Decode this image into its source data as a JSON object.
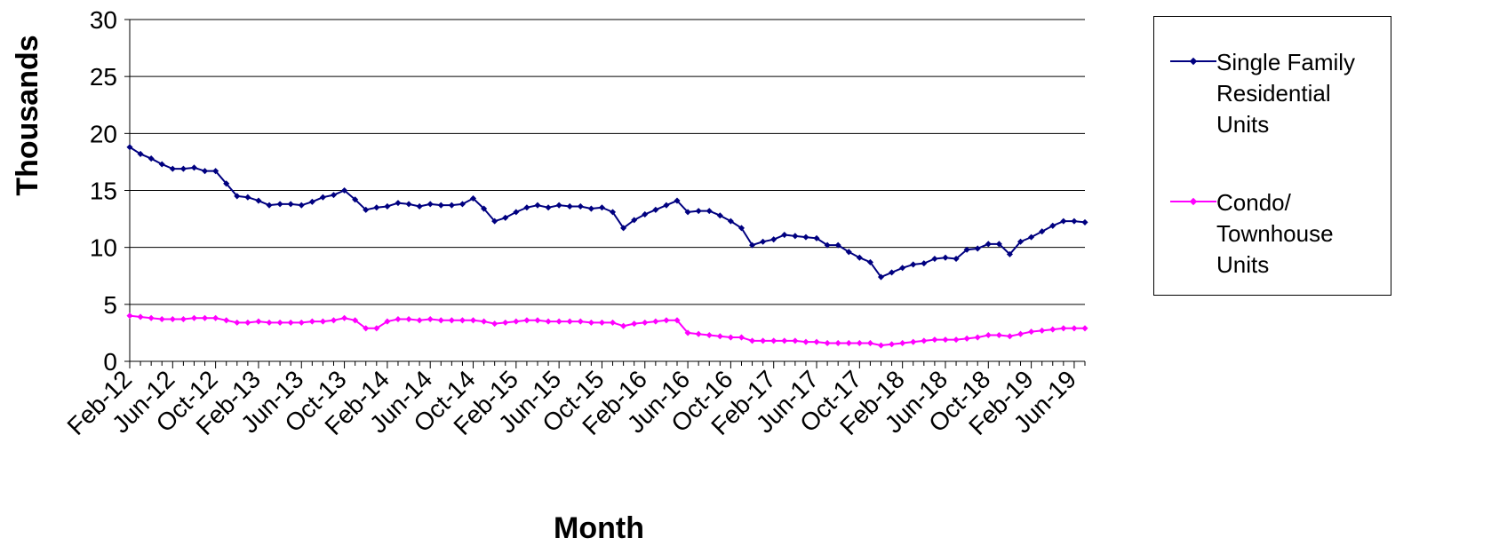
{
  "chart_data": {
    "type": "line",
    "title": "",
    "xlabel": "Month",
    "ylabel": "Thousands",
    "ylim": [
      0,
      30
    ],
    "yticks": [
      0,
      5,
      10,
      15,
      20,
      25,
      30
    ],
    "grid": "horizontal",
    "legend_position": "right",
    "x_tick_labels": [
      "Feb-12",
      "Jun-12",
      "Oct-12",
      "Feb-13",
      "Jun-13",
      "Oct-13",
      "Feb-14",
      "Jun-14",
      "Oct-14",
      "Feb-15",
      "Jun-15",
      "Oct-15",
      "Feb-16",
      "Jun-16",
      "Oct-16",
      "Feb-17",
      "Jun-17",
      "Oct-17",
      "Feb-18",
      "Jun-18",
      "Oct-18",
      "Feb-19",
      "Jun-19"
    ],
    "x": [
      "Feb-12",
      "Mar-12",
      "Apr-12",
      "May-12",
      "Jun-12",
      "Jul-12",
      "Aug-12",
      "Sep-12",
      "Oct-12",
      "Nov-12",
      "Dec-12",
      "Jan-13",
      "Feb-13",
      "Mar-13",
      "Apr-13",
      "May-13",
      "Jun-13",
      "Jul-13",
      "Aug-13",
      "Sep-13",
      "Oct-13",
      "Nov-13",
      "Dec-13",
      "Jan-14",
      "Feb-14",
      "Mar-14",
      "Apr-14",
      "May-14",
      "Jun-14",
      "Jul-14",
      "Aug-14",
      "Sep-14",
      "Oct-14",
      "Nov-14",
      "Dec-14",
      "Jan-15",
      "Feb-15",
      "Mar-15",
      "Apr-15",
      "May-15",
      "Jun-15",
      "Jul-15",
      "Aug-15",
      "Sep-15",
      "Oct-15",
      "Nov-15",
      "Dec-15",
      "Jan-16",
      "Feb-16",
      "Mar-16",
      "Apr-16",
      "May-16",
      "Jun-16",
      "Jul-16",
      "Aug-16",
      "Sep-16",
      "Oct-16",
      "Nov-16",
      "Dec-16",
      "Jan-17",
      "Feb-17",
      "Mar-17",
      "Apr-17",
      "May-17",
      "Jun-17",
      "Jul-17",
      "Aug-17",
      "Sep-17",
      "Oct-17",
      "Nov-17",
      "Dec-17",
      "Jan-18",
      "Feb-18",
      "Mar-18",
      "Apr-18",
      "May-18",
      "Jun-18",
      "Jul-18",
      "Aug-18",
      "Sep-18",
      "Oct-18",
      "Nov-18",
      "Dec-18",
      "Jan-19",
      "Feb-19",
      "Mar-19",
      "Apr-19",
      "May-19",
      "Jun-19",
      "Jul-19"
    ],
    "series": [
      {
        "name": "Single Family Residential Units",
        "color": "#000080",
        "values": [
          18.8,
          18.2,
          17.8,
          17.3,
          16.9,
          16.9,
          17.0,
          16.7,
          16.7,
          15.6,
          14.5,
          14.4,
          14.1,
          13.7,
          13.8,
          13.8,
          13.7,
          14.0,
          14.4,
          14.6,
          15.0,
          14.2,
          13.3,
          13.5,
          13.6,
          13.9,
          13.8,
          13.6,
          13.8,
          13.7,
          13.7,
          13.8,
          14.3,
          13.4,
          12.3,
          12.6,
          13.1,
          13.5,
          13.7,
          13.5,
          13.7,
          13.6,
          13.6,
          13.4,
          13.5,
          13.1,
          11.7,
          12.4,
          12.9,
          13.3,
          13.7,
          14.1,
          13.1,
          13.2,
          13.2,
          12.8,
          12.3,
          11.7,
          10.2,
          10.5,
          10.7,
          11.1,
          11.0,
          10.9,
          10.8,
          10.2,
          10.2,
          9.6,
          9.1,
          8.7,
          7.4,
          7.8,
          8.2,
          8.5,
          8.6,
          9.0,
          9.1,
          9.0,
          9.8,
          9.9,
          10.3,
          10.3,
          9.4,
          10.5,
          10.9,
          11.4,
          11.9,
          12.3,
          12.3,
          12.2
        ]
      },
      {
        "name": "Condo/ Townhouse Units",
        "color": "#ff00ff",
        "values": [
          4.0,
          3.9,
          3.8,
          3.7,
          3.7,
          3.7,
          3.8,
          3.8,
          3.8,
          3.6,
          3.4,
          3.4,
          3.5,
          3.4,
          3.4,
          3.4,
          3.4,
          3.5,
          3.5,
          3.6,
          3.8,
          3.6,
          2.9,
          2.9,
          3.5,
          3.7,
          3.7,
          3.6,
          3.7,
          3.6,
          3.6,
          3.6,
          3.6,
          3.5,
          3.3,
          3.4,
          3.5,
          3.6,
          3.6,
          3.5,
          3.5,
          3.5,
          3.5,
          3.4,
          3.4,
          3.4,
          3.1,
          3.3,
          3.4,
          3.5,
          3.6,
          3.6,
          2.5,
          2.4,
          2.3,
          2.2,
          2.1,
          2.1,
          1.8,
          1.8,
          1.8,
          1.8,
          1.8,
          1.7,
          1.7,
          1.6,
          1.6,
          1.6,
          1.6,
          1.6,
          1.4,
          1.5,
          1.6,
          1.7,
          1.8,
          1.9,
          1.9,
          1.9,
          2.0,
          2.1,
          2.3,
          2.3,
          2.2,
          2.4,
          2.6,
          2.7,
          2.8,
          2.9,
          2.9,
          2.9
        ]
      }
    ]
  },
  "legend": {
    "items": [
      {
        "lines": [
          "Single Family",
          "Residential",
          "Units"
        ],
        "color": "#000080"
      },
      {
        "lines": [
          "Condo/",
          "Townhouse",
          "Units"
        ],
        "color": "#ff00ff"
      }
    ]
  }
}
